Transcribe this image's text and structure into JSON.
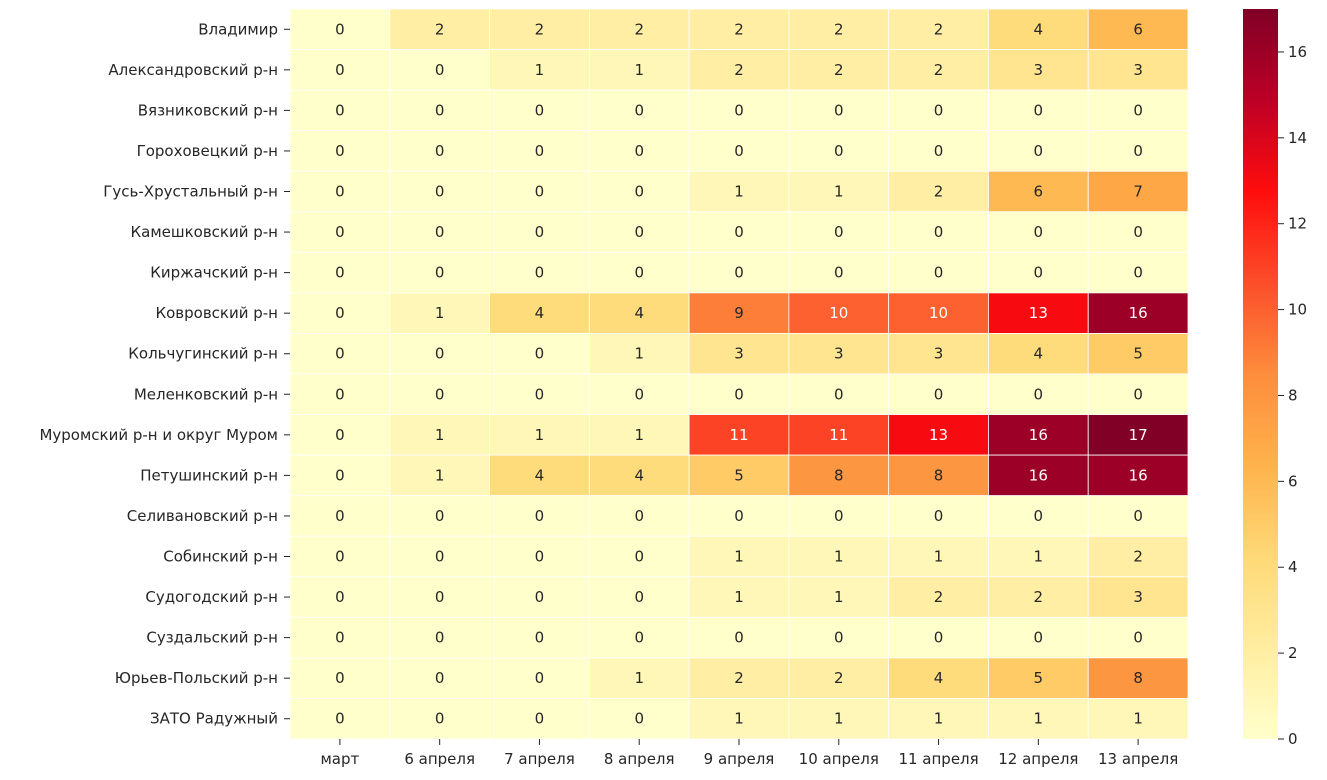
{
  "chart_data": {
    "type": "heatmap",
    "title": "",
    "xlabel": "",
    "ylabel": "",
    "columns": [
      "март",
      "6 апреля",
      "7 апреля",
      "8 апреля",
      "9 апреля",
      "10 апреля",
      "11 апреля",
      "12 апреля",
      "13 апреля"
    ],
    "rows": [
      "Владимир",
      "Александровский р-н",
      "Вязниковский р-н",
      "Гороховецкий р-н",
      "Гусь-Хрустальный р-н",
      "Камешковский р-н",
      "Киржачский р-н",
      "Ковровский р-н",
      "Кольчугинский р-н",
      "Меленковский р-н",
      "Муромский р-н и округ Муром",
      "Петушинский р-н",
      "Селивановский р-н",
      "Собинский р-н",
      "Судогодский р-н",
      "Суздальский р-н",
      "Юрьев-Польский р-н",
      "ЗАТО Радужный"
    ],
    "values": [
      [
        0,
        2,
        2,
        2,
        2,
        2,
        2,
        4,
        6
      ],
      [
        0,
        0,
        1,
        1,
        2,
        2,
        2,
        3,
        3
      ],
      [
        0,
        0,
        0,
        0,
        0,
        0,
        0,
        0,
        0
      ],
      [
        0,
        0,
        0,
        0,
        0,
        0,
        0,
        0,
        0
      ],
      [
        0,
        0,
        0,
        0,
        1,
        1,
        2,
        6,
        7
      ],
      [
        0,
        0,
        0,
        0,
        0,
        0,
        0,
        0,
        0
      ],
      [
        0,
        0,
        0,
        0,
        0,
        0,
        0,
        0,
        0
      ],
      [
        0,
        1,
        4,
        4,
        9,
        10,
        10,
        13,
        16
      ],
      [
        0,
        0,
        0,
        1,
        3,
        3,
        3,
        4,
        5
      ],
      [
        0,
        0,
        0,
        0,
        0,
        0,
        0,
        0,
        0
      ],
      [
        0,
        1,
        1,
        1,
        11,
        11,
        13,
        16,
        17
      ],
      [
        0,
        1,
        4,
        4,
        5,
        8,
        8,
        16,
        16
      ],
      [
        0,
        0,
        0,
        0,
        0,
        0,
        0,
        0,
        0
      ],
      [
        0,
        0,
        0,
        0,
        1,
        1,
        1,
        1,
        2
      ],
      [
        0,
        0,
        0,
        0,
        1,
        1,
        2,
        2,
        3
      ],
      [
        0,
        0,
        0,
        0,
        0,
        0,
        0,
        0,
        0
      ],
      [
        0,
        0,
        0,
        1,
        2,
        2,
        4,
        5,
        8
      ],
      [
        0,
        0,
        0,
        0,
        1,
        1,
        1,
        1,
        1
      ]
    ],
    "colorbar": {
      "colormap": "YlOrRd",
      "range": [
        0,
        17
      ],
      "ticks": [
        0,
        2,
        4,
        6,
        8,
        10,
        12,
        14,
        16
      ]
    },
    "grid": true,
    "legend": "colorbar-right"
  }
}
